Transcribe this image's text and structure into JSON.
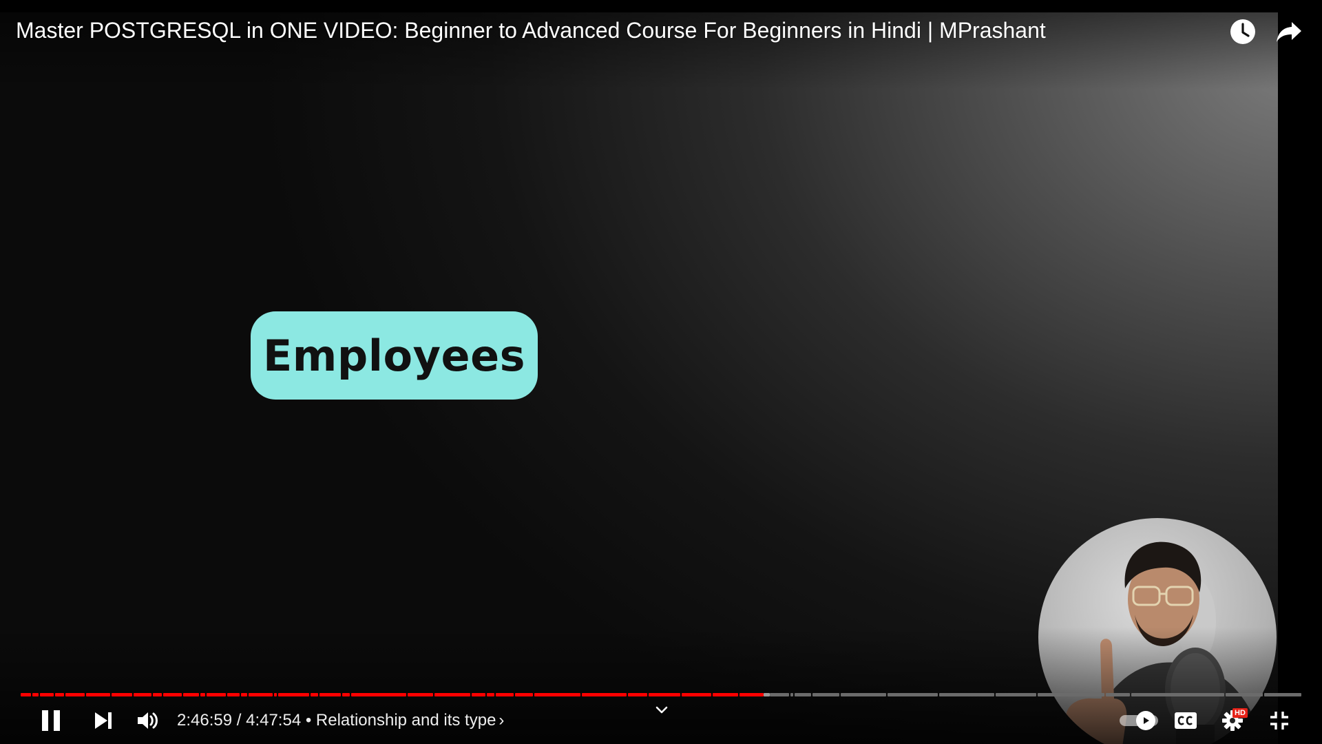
{
  "player": {
    "title": "Master POSTGRESQL in ONE VIDEO: Beginner to Advanced Course For Beginners in Hindi | MPrashant",
    "video_content": {
      "label": "Employees",
      "pill_color": "#8ce8e2"
    },
    "top_buttons": [
      {
        "name": "watch-later",
        "icon": "clock-icon"
      },
      {
        "name": "share",
        "icon": "share-arrow-icon"
      }
    ],
    "progress": {
      "fraction": 0.58,
      "played_color": "#ff0000",
      "unplayed_color": "#6b6b6b",
      "buffered_color": "#9a9a9a"
    },
    "controls": {
      "current_time": "2:46:59",
      "separator": " / ",
      "duration": "4:47:54",
      "chapter_prefix": " • ",
      "chapter": "Relationship and its type",
      "chapter_chevron": "›",
      "autoplay_on": true,
      "hd_badge": "HD",
      "icons": [
        "pause-icon",
        "next-icon",
        "volume-icon",
        "chevron-down-icon",
        "play-icon",
        "closed-captions-icon",
        "gear-icon",
        "exit-fullscreen-icon"
      ]
    }
  }
}
